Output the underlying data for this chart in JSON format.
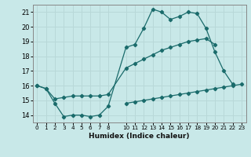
{
  "title": "",
  "xlabel": "Humidex (Indice chaleur)",
  "background_color": "#c8e8e8",
  "grid_color": "#b8d8d8",
  "line_color": "#1a6b6b",
  "xlim": [
    -0.5,
    23.5
  ],
  "ylim": [
    13.5,
    21.5
  ],
  "yticks": [
    14,
    15,
    16,
    17,
    18,
    19,
    20,
    21
  ],
  "xticks": [
    0,
    1,
    2,
    3,
    4,
    5,
    6,
    7,
    8,
    10,
    11,
    12,
    13,
    14,
    15,
    16,
    17,
    18,
    19,
    20,
    21,
    22,
    23
  ],
  "curve1_x": [
    0,
    1,
    2,
    3,
    4,
    5,
    6,
    7,
    8,
    10,
    11,
    12,
    13,
    14,
    15,
    16,
    17,
    18,
    19,
    20,
    21,
    22
  ],
  "curve1_y": [
    16.0,
    15.8,
    14.8,
    13.9,
    14.0,
    14.0,
    13.9,
    14.0,
    14.6,
    18.6,
    18.8,
    19.9,
    21.2,
    21.0,
    20.5,
    20.7,
    21.0,
    20.9,
    19.9,
    18.3,
    17.0,
    16.1
  ],
  "curve2_x": [
    0,
    1,
    2,
    3,
    4,
    5,
    6,
    7,
    8,
    10,
    11,
    12,
    13,
    14,
    15,
    16,
    17,
    18,
    19,
    20
  ],
  "curve2_y": [
    16.0,
    15.8,
    15.1,
    15.2,
    15.3,
    15.3,
    15.3,
    15.3,
    15.4,
    17.2,
    17.5,
    17.8,
    18.1,
    18.4,
    18.6,
    18.8,
    19.0,
    19.1,
    19.2,
    18.8
  ],
  "curve3_x": [
    10,
    11,
    12,
    13,
    14,
    15,
    16,
    17,
    18,
    19,
    20,
    21,
    22,
    23
  ],
  "curve3_y": [
    14.8,
    14.9,
    15.0,
    15.1,
    15.2,
    15.3,
    15.4,
    15.5,
    15.6,
    15.7,
    15.8,
    15.9,
    16.0,
    16.1
  ]
}
